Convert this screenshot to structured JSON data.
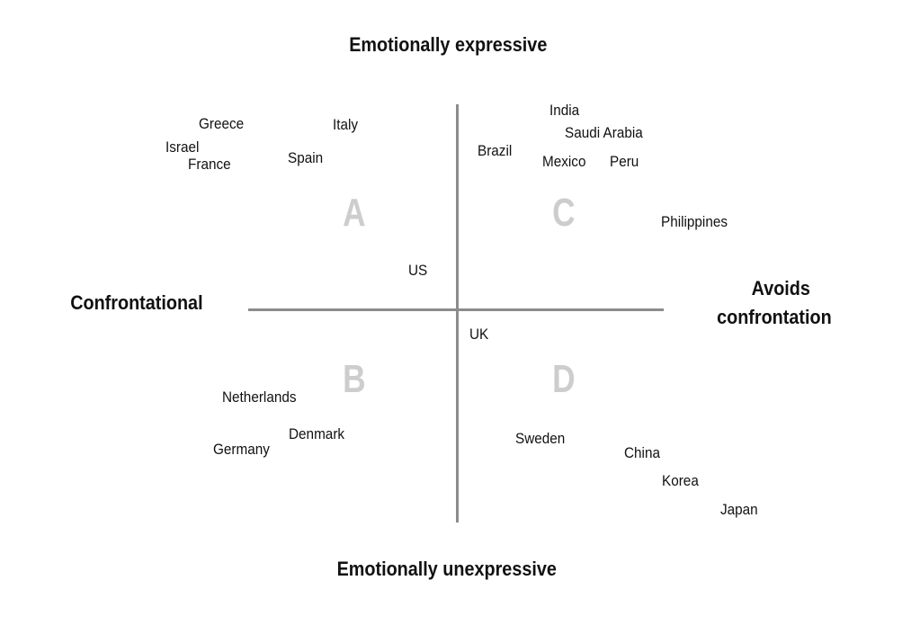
{
  "axes": {
    "top": "Emotionally expressive",
    "bottom": "Emotionally unexpressive",
    "left": "Confrontational",
    "right_line1": "Avoids",
    "right_line2": "confrontation"
  },
  "quadrants": [
    "A",
    "B",
    "C",
    "D"
  ],
  "countries": {
    "greece": "Greece",
    "italy": "Italy",
    "israel": "Israel",
    "france": "France",
    "spain": "Spain",
    "us": "US",
    "india": "India",
    "saudi_arabia": "Saudi Arabia",
    "brazil": "Brazil",
    "mexico": "Mexico",
    "peru": "Peru",
    "philippines": "Philippines",
    "uk": "UK",
    "netherlands": "Netherlands",
    "denmark": "Denmark",
    "germany": "Germany",
    "sweden": "Sweden",
    "china": "China",
    "korea": "Korea",
    "japan": "Japan"
  }
}
